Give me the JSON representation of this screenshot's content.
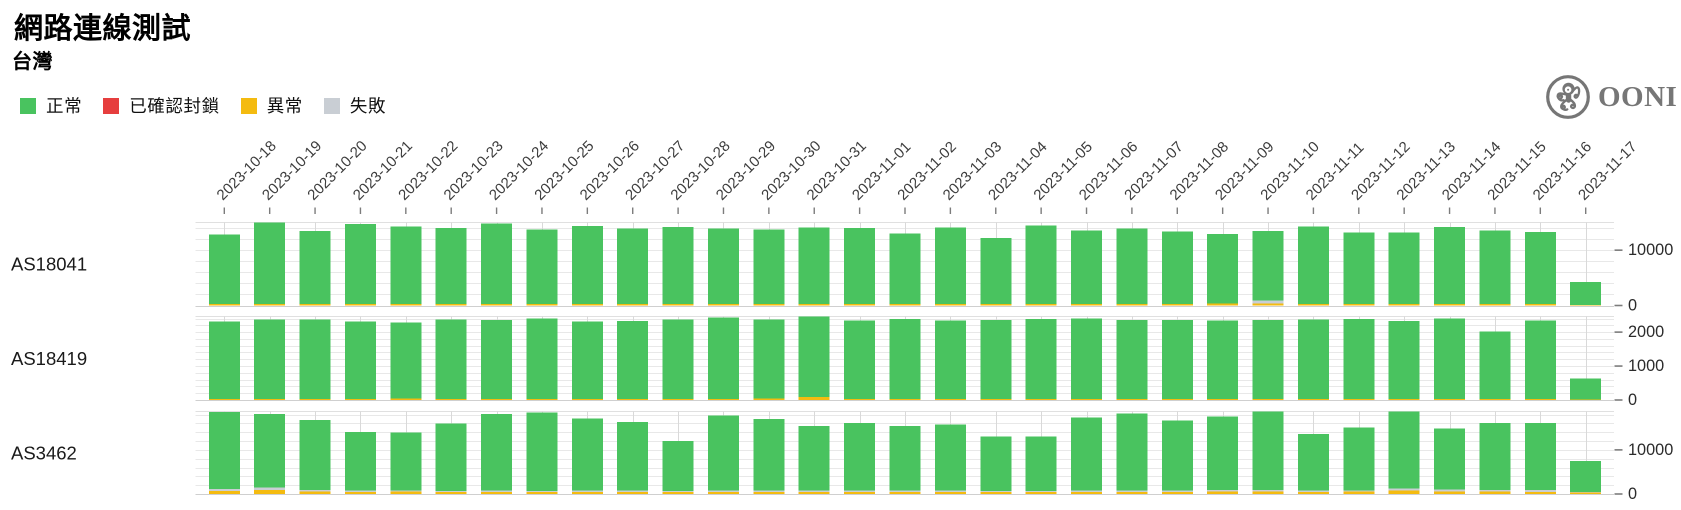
{
  "page": {
    "title": "網路連線測試",
    "subtitle": "台灣"
  },
  "legend": {
    "items": [
      {
        "key": "ok",
        "label": "正常",
        "color": "#49C35F"
      },
      {
        "key": "confirmed",
        "label": "已確認封鎖",
        "color": "#E63E3E"
      },
      {
        "key": "anomaly",
        "label": "異常",
        "color": "#F4BB10"
      },
      {
        "key": "failure",
        "label": "失敗",
        "color": "#C9CED4"
      }
    ]
  },
  "logo": {
    "text": "OONI",
    "icon": "ooni-octopus",
    "color": "#767676"
  },
  "chart_data": {
    "type": "bar",
    "stacked": true,
    "grid": true,
    "legend_position": "top-left",
    "x_categories": [
      "2023-10-18",
      "2023-10-19",
      "2023-10-20",
      "2023-10-21",
      "2023-10-22",
      "2023-10-23",
      "2023-10-24",
      "2023-10-25",
      "2023-10-26",
      "2023-10-27",
      "2023-10-28",
      "2023-10-29",
      "2023-10-30",
      "2023-10-31",
      "2023-11-01",
      "2023-11-02",
      "2023-11-03",
      "2023-11-04",
      "2023-11-05",
      "2023-11-06",
      "2023-11-07",
      "2023-11-08",
      "2023-11-09",
      "2023-11-10",
      "2023-11-11",
      "2023-11-12",
      "2023-11-13",
      "2023-11-14",
      "2023-11-15",
      "2023-11-16",
      "2023-11-17"
    ],
    "stack_order": [
      "anomaly",
      "confirmed",
      "failure",
      "ok"
    ],
    "series_colors": {
      "ok": "#49C35F",
      "confirmed": "#E63E3E",
      "anomaly": "#F4BB10",
      "failure": "#C9CED4"
    },
    "rows": [
      {
        "label": "AS18041",
        "ylim": [
          0,
          15000
        ],
        "ytick_labels": [
          0,
          10000
        ],
        "grid_step": 2000,
        "series": {
          "ok": [
            12500,
            14700,
            13200,
            14450,
            14000,
            13700,
            14550,
            13400,
            14100,
            13600,
            13850,
            13650,
            13450,
            13800,
            13750,
            12700,
            13800,
            11900,
            14200,
            13300,
            13600,
            13050,
            12550,
            12600,
            13950,
            12900,
            12900,
            13900,
            13300,
            12950,
            4150
          ],
          "confirmed": [
            0,
            0,
            0,
            0,
            0,
            0,
            0,
            0,
            0,
            0,
            0,
            0,
            0,
            0,
            0,
            0,
            0,
            0,
            0,
            0,
            0,
            0,
            0,
            0,
            0,
            0,
            0,
            0,
            0,
            0,
            0
          ],
          "anomaly": [
            300,
            300,
            300,
            300,
            300,
            300,
            300,
            300,
            300,
            300,
            300,
            300,
            300,
            300,
            300,
            300,
            300,
            300,
            300,
            300,
            300,
            300,
            400,
            400,
            300,
            300,
            300,
            300,
            300,
            300,
            100
          ],
          "failure": [
            0,
            0,
            0,
            0,
            0,
            0,
            0,
            0,
            0,
            0,
            0,
            0,
            0,
            0,
            0,
            0,
            0,
            0,
            0,
            0,
            0,
            0,
            0,
            500,
            0,
            0,
            0,
            0,
            0,
            0,
            0
          ]
        }
      },
      {
        "label": "AS18419",
        "ylim": [
          0,
          2460
        ],
        "ytick_labels": [
          0,
          1000,
          2000
        ],
        "grid_step": 200,
        "series": {
          "ok": [
            2285,
            2345,
            2335,
            2285,
            2235,
            2335,
            2323,
            2370,
            2285,
            2297,
            2335,
            2408,
            2337,
            2370,
            2311,
            2358,
            2308,
            2332,
            2358,
            2370,
            2332,
            2332,
            2308,
            2332,
            2346,
            2358,
            2300,
            2370,
            1995,
            2305,
            625
          ],
          "confirmed": [
            0,
            0,
            0,
            0,
            0,
            0,
            0,
            0,
            0,
            0,
            0,
            0,
            0,
            0,
            0,
            0,
            0,
            0,
            0,
            0,
            0,
            0,
            0,
            0,
            0,
            0,
            0,
            0,
            0,
            0,
            0
          ],
          "anomaly": [
            30,
            30,
            30,
            30,
            45,
            30,
            30,
            30,
            30,
            30,
            30,
            30,
            40,
            90,
            30,
            30,
            30,
            30,
            30,
            30,
            30,
            30,
            30,
            30,
            30,
            30,
            30,
            30,
            30,
            30,
            15
          ],
          "failure": [
            0,
            0,
            0,
            0,
            0,
            0,
            0,
            0,
            0,
            0,
            0,
            0,
            0,
            0,
            0,
            0,
            0,
            0,
            0,
            0,
            0,
            0,
            0,
            0,
            0,
            0,
            0,
            0,
            0,
            0,
            0
          ]
        }
      },
      {
        "label": "AS3462",
        "ylim": [
          0,
          18700
        ],
        "ytick_labels": [
          0,
          10000
        ],
        "grid_step": 2000,
        "series": {
          "ok": [
            17480,
            16610,
            15940,
            13350,
            13080,
            15350,
            17350,
            17800,
            16350,
            15550,
            11350,
            17050,
            16150,
            14600,
            15350,
            14600,
            14950,
            12300,
            12300,
            16500,
            17500,
            15850,
            16670,
            17750,
            12900,
            14250,
            17420,
            13830,
            15190,
            15270,
            7075
          ],
          "confirmed": [
            0,
            0,
            0,
            0,
            0,
            0,
            0,
            0,
            0,
            0,
            0,
            0,
            0,
            0,
            0,
            0,
            0,
            0,
            0,
            0,
            0,
            0,
            0,
            0,
            0,
            0,
            0,
            0,
            0,
            0,
            0
          ],
          "anomaly": [
            730,
            900,
            520,
            450,
            520,
            400,
            450,
            450,
            450,
            450,
            400,
            450,
            500,
            500,
            450,
            500,
            450,
            450,
            450,
            500,
            500,
            500,
            580,
            550,
            450,
            550,
            840,
            580,
            520,
            490,
            325
          ],
          "failure": [
            390,
            590,
            340,
            300,
            300,
            250,
            300,
            250,
            300,
            300,
            250,
            300,
            350,
            300,
            300,
            300,
            300,
            250,
            250,
            300,
            300,
            300,
            350,
            400,
            300,
            300,
            390,
            390,
            390,
            390,
            100
          ]
        }
      }
    ]
  }
}
